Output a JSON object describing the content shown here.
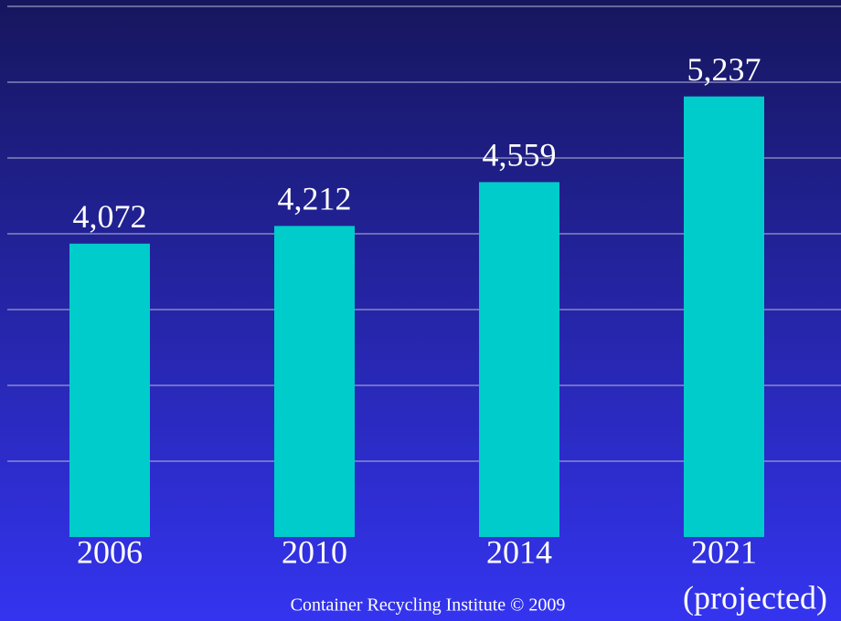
{
  "chart_data": {
    "type": "bar",
    "categories": [
      "2006",
      "2010",
      "2014",
      "2021"
    ],
    "annotation": "(projected)",
    "values": [
      4072,
      4212,
      4559,
      5237
    ],
    "value_labels": [
      "4,072",
      "4,212",
      "4,559",
      "5,237"
    ],
    "color": "#00cccc",
    "ylim": [
      1750,
      5950
    ],
    "yticks": [
      2350,
      2950,
      3550,
      4150,
      4750,
      5350,
      5950
    ],
    "grid": true,
    "footer": "Container Recycling Institute © 2009"
  }
}
